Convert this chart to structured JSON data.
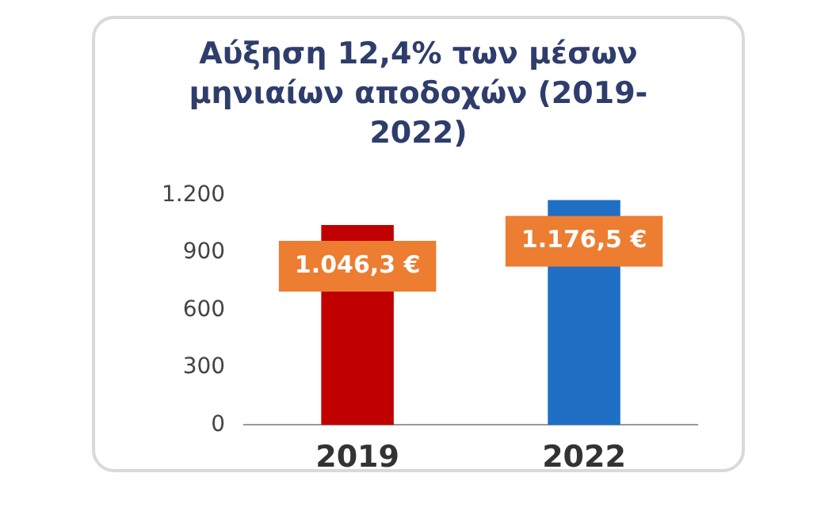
{
  "chart_data": {
    "type": "bar",
    "title": "Αύξηση 12,4% των μέσων μηνιαίων αποδοχών (2019-2022)",
    "categories": [
      "2019",
      "2022"
    ],
    "values": [
      1046.3,
      1176.5
    ],
    "colors": [
      "#c00000",
      "#1f6fc4"
    ],
    "value_labels": [
      "1.046,3 €",
      "1.176,5 €"
    ],
    "ylim": [
      0,
      1200
    ],
    "yticks": [
      0,
      300,
      600,
      900,
      {
        "value": 1200,
        "label": "1.200"
      }
    ],
    "grid": false
  }
}
